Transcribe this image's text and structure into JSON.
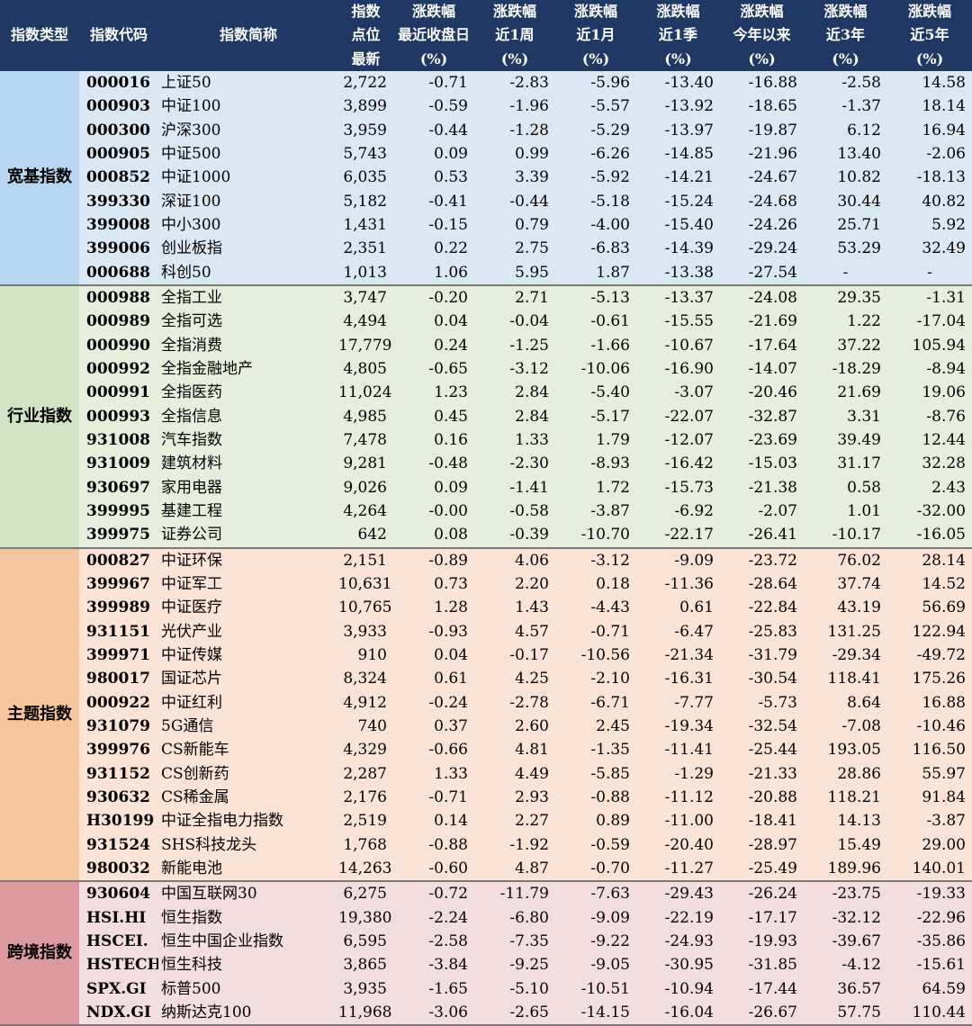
{
  "headers": [
    [
      "指数类型"
    ],
    [
      "指数代码"
    ],
    [
      "指数简称"
    ],
    [
      "指数",
      "点位",
      "最新"
    ],
    [
      "涨跌幅",
      "最近收盘日",
      "(%)"
    ],
    [
      "涨跌幅",
      "近1周",
      "(%)"
    ],
    [
      "涨跌幅",
      "近1月",
      "(%)"
    ],
    [
      "涨跌幅",
      "近1季",
      "(%)"
    ],
    [
      "涨跌幅",
      "今年以来",
      "(%)"
    ],
    [
      "涨跌幅",
      "近3年",
      "(%)"
    ],
    [
      "涨跌幅",
      "近5年",
      "(%)"
    ]
  ],
  "groups": [
    {
      "name": "宽基指数",
      "rows": [
        [
          "000016",
          "上证50",
          "2,722",
          "-0.71",
          "-2.83",
          "-5.96",
          "-13.40",
          "-16.88",
          "-2.58",
          "14.58"
        ],
        [
          "000903",
          "中证100",
          "3,899",
          "-0.59",
          "-1.96",
          "-5.57",
          "-13.92",
          "-18.65",
          "-1.37",
          "18.14"
        ],
        [
          "000300",
          "沪深300",
          "3,959",
          "-0.44",
          "-1.28",
          "-5.29",
          "-13.97",
          "-19.87",
          "6.12",
          "16.94"
        ],
        [
          "000905",
          "中证500",
          "5,743",
          "0.09",
          "0.99",
          "-6.26",
          "-14.85",
          "-21.96",
          "13.40",
          "-2.06"
        ],
        [
          "000852",
          "中证1000",
          "6,035",
          "0.53",
          "3.39",
          "-5.92",
          "-14.21",
          "-24.67",
          "10.82",
          "-18.13"
        ],
        [
          "399330",
          "深证100",
          "5,182",
          "-0.41",
          "-0.44",
          "-5.18",
          "-15.24",
          "-24.68",
          "30.44",
          "40.82"
        ],
        [
          "399008",
          "中小300",
          "1,431",
          "-0.15",
          "0.79",
          "-4.00",
          "-15.40",
          "-24.26",
          "25.71",
          "5.92"
        ],
        [
          "399006",
          "创业板指",
          "2,351",
          "0.22",
          "2.75",
          "-6.83",
          "-14.39",
          "-29.24",
          "53.29",
          "32.49"
        ],
        [
          "000688",
          "科创50",
          "1,013",
          "1.06",
          "5.95",
          "1.87",
          "-13.38",
          "-27.54",
          "-",
          "-"
        ]
      ]
    },
    {
      "name": "行业指数",
      "rows": [
        [
          "000988",
          "全指工业",
          "3,747",
          "-0.20",
          "2.71",
          "-5.13",
          "-13.37",
          "-24.08",
          "29.35",
          "-1.31"
        ],
        [
          "000989",
          "全指可选",
          "4,494",
          "0.04",
          "-0.04",
          "-0.61",
          "-15.55",
          "-21.69",
          "1.22",
          "-17.04"
        ],
        [
          "000990",
          "全指消费",
          "17,779",
          "0.24",
          "-1.25",
          "-1.66",
          "-10.67",
          "-17.64",
          "37.22",
          "105.94"
        ],
        [
          "000992",
          "全指金融地产",
          "4,805",
          "-0.65",
          "-3.12",
          "-10.06",
          "-16.90",
          "-14.07",
          "-18.29",
          "-8.94"
        ],
        [
          "000991",
          "全指医药",
          "11,024",
          "1.23",
          "2.84",
          "-5.40",
          "-3.07",
          "-20.46",
          "21.69",
          "19.06"
        ],
        [
          "000993",
          "全指信息",
          "4,985",
          "0.45",
          "2.84",
          "-5.17",
          "-22.07",
          "-32.87",
          "3.31",
          "-8.76"
        ],
        [
          "931008",
          "汽车指数",
          "7,478",
          "0.16",
          "1.33",
          "1.79",
          "-12.07",
          "-23.69",
          "39.49",
          "12.44"
        ],
        [
          "931009",
          "建筑材料",
          "9,281",
          "-0.48",
          "-2.30",
          "-8.93",
          "-16.42",
          "-15.03",
          "31.17",
          "32.28"
        ],
        [
          "930697",
          "家用电器",
          "9,026",
          "0.09",
          "-1.41",
          "1.72",
          "-15.73",
          "-21.38",
          "0.58",
          "2.43"
        ],
        [
          "399995",
          "基建工程",
          "4,264",
          "-0.00",
          "-0.58",
          "-3.87",
          "-6.92",
          "-2.07",
          "1.01",
          "-32.00"
        ],
        [
          "399975",
          "证券公司",
          "642",
          "0.08",
          "-0.39",
          "-10.70",
          "-22.17",
          "-26.41",
          "-10.17",
          "-16.05"
        ]
      ]
    },
    {
      "name": "主题指数",
      "rows": [
        [
          "000827",
          "中证环保",
          "2,151",
          "-0.89",
          "4.06",
          "-3.12",
          "-9.09",
          "-23.72",
          "76.02",
          "28.14"
        ],
        [
          "399967",
          "中证军工",
          "10,631",
          "0.73",
          "2.20",
          "0.18",
          "-11.36",
          "-28.64",
          "37.74",
          "14.52"
        ],
        [
          "399989",
          "中证医疗",
          "10,765",
          "1.28",
          "1.43",
          "-4.43",
          "0.61",
          "-22.84",
          "43.19",
          "56.69"
        ],
        [
          "931151",
          "光伏产业",
          "3,933",
          "-0.93",
          "4.57",
          "-0.71",
          "-6.47",
          "-25.83",
          "131.25",
          "122.94"
        ],
        [
          "399971",
          "中证传媒",
          "910",
          "0.04",
          "-0.17",
          "-10.56",
          "-21.34",
          "-31.79",
          "-29.34",
          "-49.72"
        ],
        [
          "980017",
          "国证芯片",
          "8,324",
          "0.61",
          "4.25",
          "-2.10",
          "-16.31",
          "-30.54",
          "118.41",
          "175.26"
        ],
        [
          "000922",
          "中证红利",
          "4,912",
          "-0.24",
          "-2.78",
          "-6.71",
          "-7.77",
          "-5.73",
          "8.64",
          "16.88"
        ],
        [
          "931079",
          "5G通信",
          "740",
          "0.37",
          "2.60",
          "2.45",
          "-19.34",
          "-32.54",
          "-7.08",
          "-10.46"
        ],
        [
          "399976",
          "CS新能车",
          "4,329",
          "-0.66",
          "4.81",
          "-1.35",
          "-11.41",
          "-25.44",
          "193.05",
          "116.50"
        ],
        [
          "931152",
          "CS创新药",
          "2,287",
          "1.33",
          "4.49",
          "-5.85",
          "-1.29",
          "-21.33",
          "28.86",
          "55.97"
        ],
        [
          "930632",
          "CS稀金属",
          "2,176",
          "-0.71",
          "2.93",
          "-0.88",
          "-11.12",
          "-20.88",
          "118.21",
          "91.84"
        ],
        [
          "H30199",
          "中证全指电力指数",
          "2,519",
          "0.14",
          "2.27",
          "0.89",
          "-11.00",
          "-18.41",
          "14.13",
          "-3.87"
        ],
        [
          "931524",
          "SHS科技龙头",
          "1,768",
          "-0.88",
          "-1.92",
          "-0.59",
          "-20.40",
          "-28.97",
          "15.49",
          "29.00"
        ],
        [
          "980032",
          "新能电池",
          "14,263",
          "-0.60",
          "4.87",
          "-0.70",
          "-11.27",
          "-25.49",
          "189.96",
          "140.01"
        ]
      ]
    },
    {
      "name": "跨境指数",
      "rows": [
        [
          "930604",
          "中国互联网30",
          "6,275",
          "-0.72",
          "-11.79",
          "-7.63",
          "-29.43",
          "-26.24",
          "-23.75",
          "-19.33"
        ],
        [
          "HSI.HI",
          "恒生指数",
          "19,380",
          "-2.24",
          "-6.80",
          "-9.09",
          "-22.19",
          "-17.17",
          "-32.12",
          "-22.96"
        ],
        [
          "HSCEI.",
          "恒生中国企业指数",
          "6,595",
          "-2.58",
          "-7.35",
          "-9.22",
          "-24.93",
          "-19.93",
          "-39.67",
          "-35.86"
        ],
        [
          "HSTECH",
          "恒生科技",
          "3,865",
          "-3.84",
          "-9.25",
          "-9.05",
          "-30.95",
          "-31.85",
          "-4.12",
          "-15.61"
        ],
        [
          "SPX.GI",
          "标普500",
          "3,935",
          "-1.65",
          "-5.10",
          "-10.51",
          "-10.94",
          "-17.44",
          "36.57",
          "64.59"
        ],
        [
          "NDX.GI",
          "纳斯达克100",
          "11,968",
          "-3.06",
          "-2.65",
          "-14.15",
          "-16.04",
          "-26.67",
          "57.75",
          "110.44"
        ]
      ]
    }
  ]
}
